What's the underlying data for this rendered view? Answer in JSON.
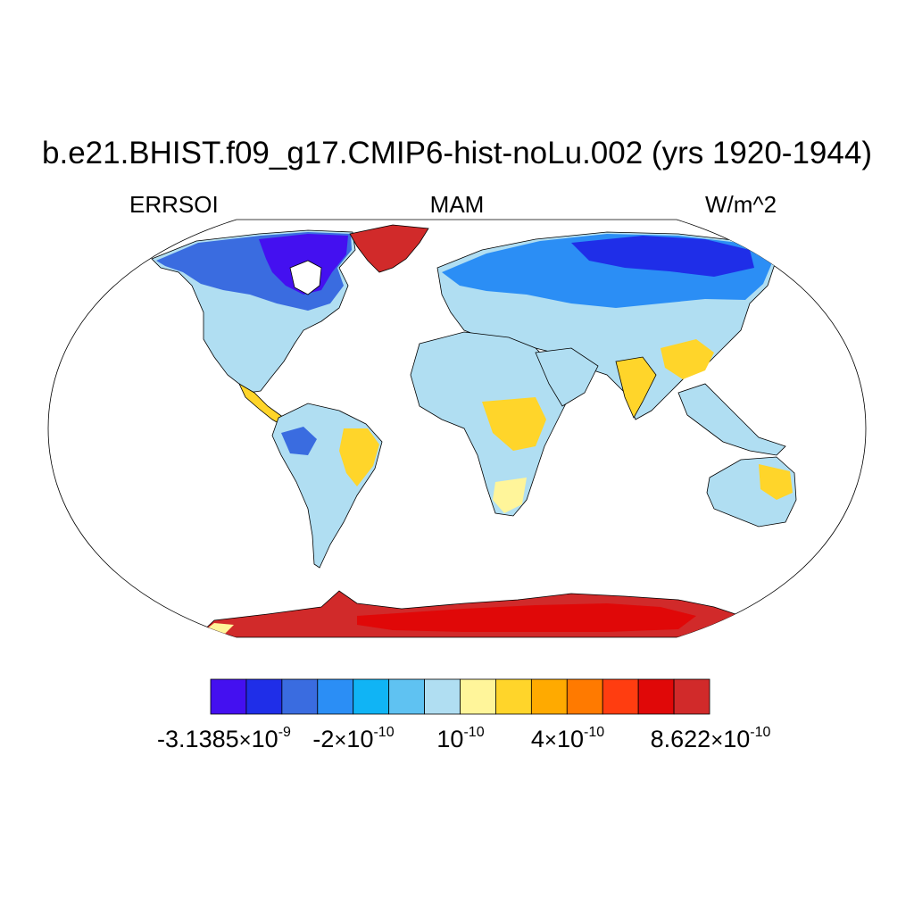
{
  "title": "b.e21.BHIST.f09_g17.CMIP6-hist-noLu.002 (yrs 1920-1944)",
  "left_label": "ERRSOI",
  "center_label": "MAM",
  "right_label": "W/m^2",
  "map": {
    "projection": "Robinson",
    "variable": "ERRSOI",
    "season": "MAM",
    "units": "W/m^2"
  },
  "colorbar": {
    "colors": [
      "#4410f0",
      "#1f2ee8",
      "#3a6ce0",
      "#2b8ef5",
      "#10b4f5",
      "#5fc2f2",
      "#b0def2",
      "#fff59a",
      "#ffd52a",
      "#ffaa00",
      "#ff7a00",
      "#ff3d10",
      "#e00808",
      "#d12a2a"
    ],
    "labels": [
      {
        "mantissa": "-3.1385",
        "times": "×",
        "base": "10",
        "exp": "-9"
      },
      {
        "mantissa": "-2",
        "times": "×",
        "base": "10",
        "exp": "-10"
      },
      {
        "mantissa": "",
        "times": "",
        "base": "10",
        "exp": "-10"
      },
      {
        "mantissa": "4",
        "times": "×",
        "base": "10",
        "exp": "-10"
      },
      {
        "mantissa": "8.622",
        "times": "×",
        "base": "10",
        "exp": "-10"
      }
    ]
  }
}
